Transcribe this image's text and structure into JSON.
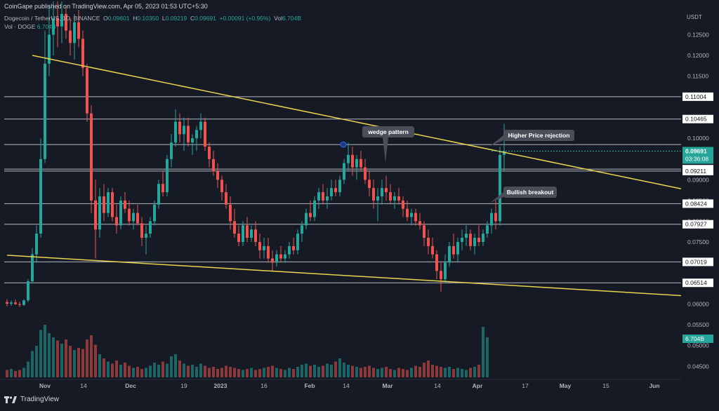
{
  "header": {
    "published": "CoinGape published on TradingView.com, Apr 05, 2023 01:53 UTC+5:30",
    "symbol": "Dogecoin / TetherUS, 1D, BINANCE",
    "o_label": "O",
    "o_val": "0.09601",
    "h_label": "H",
    "h_val": "0.10350",
    "l_label": "L",
    "l_val": "0.09219",
    "c_label": "C",
    "c_val": "0.09691",
    "change": "+0.00091 (+0.95%)",
    "vol_label": "Vol",
    "vol_val": "6.704B",
    "vol2_label": "Vol · DOGE",
    "vol2_val": "6.704B"
  },
  "footer": {
    "brand": "TradingView",
    "icon": "tradingview-logo-icon"
  },
  "colors": {
    "bg": "#161a25",
    "up": "#26a69a",
    "down": "#ef5350",
    "trendline": "#e8d44d",
    "level": "#d1d4dc",
    "text": "#b2b5be",
    "price_tag": "#26a69a"
  },
  "chart_data": {
    "type": "candlestick",
    "title": "Dogecoin / TetherUS, 1D, BINANCE",
    "currency": "USDT",
    "ylim": [
      0.042,
      0.131
    ],
    "y_ticks": [
      0.045,
      0.05,
      0.055,
      0.06,
      0.065,
      0.075,
      0.08,
      0.085,
      0.09,
      0.1,
      0.105,
      0.115,
      0.12,
      0.125
    ],
    "y_tick_labels": [
      "0.04500",
      "0.05000",
      "0.05500",
      "0.06000",
      "0.06500",
      "0.07500",
      "0.08000",
      "0.08500",
      "0.09000",
      "0.10000",
      "0.10500",
      "0.11500",
      "0.12000",
      "0.12500"
    ],
    "x_ticks": [
      "Nov",
      "14",
      "Dec",
      "19",
      "2023",
      "16",
      "Feb",
      "14",
      "Mar",
      "14",
      "Apr",
      "17",
      "May",
      "15",
      "Jun"
    ],
    "horizontal_levels": [
      0.11004,
      0.10465,
      0.0985,
      0.09256,
      0.09211,
      0.08424,
      0.07927,
      0.07019,
      0.06514
    ],
    "level_labels": [
      "0.11004",
      "0.10465",
      "",
      "0.09256",
      "0.09211",
      "0.08424",
      "0.07927",
      "0.07019",
      "0.06514"
    ],
    "current_price": {
      "value": 0.09691,
      "label": "0.09691",
      "countdown": "03:36:08"
    },
    "volume_label": "6.704B",
    "annotations": [
      {
        "text": "wedge pattern"
      },
      {
        "text": "Higher Price rejection"
      },
      {
        "text": "Bullish breakout"
      }
    ],
    "trendlines": [
      {
        "name": "upper",
        "from": [
          "2022-10-30",
          0.12
        ],
        "to": [
          "2023-06-24",
          0.0705
        ]
      },
      {
        "name": "lower",
        "from": [
          "2022-10-24",
          0.0718
        ],
        "to": [
          "2023-06-24",
          0.057
        ]
      }
    ],
    "candles": [
      [
        0.0605,
        0.0612,
        0.0595,
        0.0601
      ],
      [
        0.0601,
        0.0609,
        0.0596,
        0.0604
      ],
      [
        0.0604,
        0.0611,
        0.0598,
        0.06
      ],
      [
        0.06,
        0.0606,
        0.0593,
        0.0598
      ],
      [
        0.0598,
        0.0612,
        0.0596,
        0.0609
      ],
      [
        0.0609,
        0.066,
        0.0605,
        0.0655
      ],
      [
        0.0655,
        0.0735,
        0.065,
        0.072
      ],
      [
        0.072,
        0.079,
        0.07,
        0.077
      ],
      [
        0.077,
        0.1,
        0.076,
        0.095
      ],
      [
        0.095,
        0.126,
        0.094,
        0.118
      ],
      [
        0.118,
        0.132,
        0.115,
        0.125
      ],
      [
        0.125,
        0.133,
        0.12,
        0.129
      ],
      [
        0.129,
        0.133,
        0.122,
        0.127
      ],
      [
        0.127,
        0.133,
        0.123,
        0.13
      ],
      [
        0.13,
        0.132,
        0.124,
        0.126
      ],
      [
        0.126,
        0.129,
        0.12,
        0.123
      ],
      [
        0.123,
        0.13,
        0.119,
        0.128
      ],
      [
        0.128,
        0.131,
        0.122,
        0.124
      ],
      [
        0.124,
        0.126,
        0.115,
        0.117
      ],
      [
        0.117,
        0.118,
        0.104,
        0.106
      ],
      [
        0.106,
        0.108,
        0.082,
        0.085
      ],
      [
        0.085,
        0.09,
        0.071,
        0.078
      ],
      [
        0.078,
        0.088,
        0.076,
        0.086
      ],
      [
        0.086,
        0.089,
        0.08,
        0.082
      ],
      [
        0.082,
        0.088,
        0.081,
        0.087
      ],
      [
        0.087,
        0.088,
        0.08,
        0.081
      ],
      [
        0.081,
        0.084,
        0.077,
        0.079
      ],
      [
        0.079,
        0.086,
        0.078,
        0.085
      ],
      [
        0.085,
        0.087,
        0.082,
        0.083
      ],
      [
        0.083,
        0.085,
        0.079,
        0.08
      ],
      [
        0.08,
        0.083,
        0.078,
        0.082
      ],
      [
        0.082,
        0.084,
        0.079,
        0.0795
      ],
      [
        0.0795,
        0.081,
        0.074,
        0.076
      ],
      [
        0.076,
        0.079,
        0.072,
        0.077
      ],
      [
        0.077,
        0.081,
        0.076,
        0.08
      ],
      [
        0.08,
        0.085,
        0.079,
        0.084
      ],
      [
        0.084,
        0.09,
        0.083,
        0.089
      ],
      [
        0.089,
        0.092,
        0.086,
        0.087
      ],
      [
        0.087,
        0.096,
        0.086,
        0.095
      ],
      [
        0.095,
        0.101,
        0.093,
        0.099
      ],
      [
        0.099,
        0.107,
        0.098,
        0.104
      ],
      [
        0.104,
        0.106,
        0.099,
        0.101
      ],
      [
        0.101,
        0.105,
        0.097,
        0.103
      ],
      [
        0.103,
        0.105,
        0.098,
        0.099
      ],
      [
        0.099,
        0.101,
        0.096,
        0.1
      ],
      [
        0.1,
        0.103,
        0.097,
        0.102
      ],
      [
        0.102,
        0.106,
        0.1,
        0.104
      ],
      [
        0.104,
        0.105,
        0.097,
        0.098
      ],
      [
        0.098,
        0.099,
        0.093,
        0.095
      ],
      [
        0.095,
        0.097,
        0.091,
        0.092
      ],
      [
        0.092,
        0.094,
        0.088,
        0.09
      ],
      [
        0.09,
        0.091,
        0.085,
        0.087
      ],
      [
        0.087,
        0.089,
        0.083,
        0.084
      ],
      [
        0.084,
        0.086,
        0.078,
        0.08
      ],
      [
        0.08,
        0.083,
        0.076,
        0.077
      ],
      [
        0.077,
        0.079,
        0.074,
        0.075
      ],
      [
        0.075,
        0.08,
        0.074,
        0.079
      ],
      [
        0.079,
        0.081,
        0.075,
        0.076
      ],
      [
        0.076,
        0.079,
        0.075,
        0.078
      ],
      [
        0.078,
        0.08,
        0.074,
        0.075
      ],
      [
        0.075,
        0.077,
        0.071,
        0.073
      ],
      [
        0.073,
        0.076,
        0.071,
        0.074
      ],
      [
        0.074,
        0.076,
        0.07,
        0.071
      ],
      [
        0.071,
        0.073,
        0.068,
        0.07
      ],
      [
        0.07,
        0.073,
        0.069,
        0.072
      ],
      [
        0.072,
        0.074,
        0.07,
        0.071
      ],
      [
        0.071,
        0.073,
        0.07,
        0.072
      ],
      [
        0.072,
        0.075,
        0.071,
        0.074
      ],
      [
        0.074,
        0.076,
        0.072,
        0.073
      ],
      [
        0.073,
        0.078,
        0.072,
        0.077
      ],
      [
        0.077,
        0.08,
        0.075,
        0.079
      ],
      [
        0.079,
        0.083,
        0.078,
        0.082
      ],
      [
        0.082,
        0.085,
        0.08,
        0.081
      ],
      [
        0.081,
        0.086,
        0.08,
        0.085
      ],
      [
        0.085,
        0.088,
        0.083,
        0.087
      ],
      [
        0.087,
        0.089,
        0.084,
        0.085
      ],
      [
        0.085,
        0.088,
        0.083,
        0.086
      ],
      [
        0.086,
        0.09,
        0.085,
        0.088
      ],
      [
        0.088,
        0.09,
        0.086,
        0.087
      ],
      [
        0.087,
        0.091,
        0.086,
        0.09
      ],
      [
        0.09,
        0.095,
        0.089,
        0.094
      ],
      [
        0.094,
        0.099,
        0.092,
        0.096
      ],
      [
        0.096,
        0.098,
        0.091,
        0.093
      ],
      [
        0.093,
        0.096,
        0.09,
        0.095
      ],
      [
        0.095,
        0.097,
        0.092,
        0.093
      ],
      [
        0.093,
        0.095,
        0.089,
        0.09
      ],
      [
        0.09,
        0.092,
        0.086,
        0.088
      ],
      [
        0.088,
        0.09,
        0.083,
        0.085
      ],
      [
        0.085,
        0.088,
        0.08,
        0.086
      ],
      [
        0.086,
        0.09,
        0.084,
        0.088
      ],
      [
        0.088,
        0.091,
        0.085,
        0.087
      ],
      [
        0.087,
        0.089,
        0.084,
        0.085
      ],
      [
        0.085,
        0.087,
        0.083,
        0.086
      ],
      [
        0.086,
        0.088,
        0.084,
        0.085
      ],
      [
        0.085,
        0.086,
        0.081,
        0.083
      ],
      [
        0.083,
        0.085,
        0.08,
        0.081
      ],
      [
        0.081,
        0.083,
        0.079,
        0.082
      ],
      [
        0.082,
        0.083,
        0.079,
        0.08
      ],
      [
        0.08,
        0.082,
        0.078,
        0.079
      ],
      [
        0.079,
        0.08,
        0.074,
        0.076
      ],
      [
        0.076,
        0.078,
        0.072,
        0.074
      ],
      [
        0.074,
        0.076,
        0.071,
        0.072
      ],
      [
        0.072,
        0.073,
        0.066,
        0.068
      ],
      [
        0.068,
        0.07,
        0.063,
        0.066
      ],
      [
        0.066,
        0.072,
        0.065,
        0.07
      ],
      [
        0.07,
        0.075,
        0.069,
        0.074
      ],
      [
        0.074,
        0.077,
        0.071,
        0.072
      ],
      [
        0.072,
        0.076,
        0.07,
        0.075
      ],
      [
        0.075,
        0.078,
        0.073,
        0.076
      ],
      [
        0.076,
        0.079,
        0.074,
        0.077
      ],
      [
        0.077,
        0.078,
        0.073,
        0.074
      ],
      [
        0.074,
        0.077,
        0.072,
        0.076
      ],
      [
        0.076,
        0.079,
        0.074,
        0.075
      ],
      [
        0.075,
        0.078,
        0.074,
        0.077
      ],
      [
        0.077,
        0.08,
        0.076,
        0.079
      ],
      [
        0.079,
        0.083,
        0.077,
        0.082
      ],
      [
        0.082,
        0.085,
        0.078,
        0.08
      ],
      [
        0.08,
        0.098,
        0.079,
        0.096
      ],
      [
        0.096,
        0.1035,
        0.0922,
        0.0969
      ]
    ],
    "volumes": [
      0.7,
      0.8,
      0.6,
      0.7,
      0.9,
      1.5,
      2.5,
      3.0,
      4.5,
      5.0,
      4.2,
      3.8,
      3.5,
      3.2,
      3.6,
      3.0,
      2.6,
      2.8,
      2.7,
      3.6,
      4.0,
      3.1,
      2.2,
      1.8,
      1.5,
      1.3,
      1.6,
      1.2,
      1.4,
      1.1,
      0.9,
      1.0,
      0.8,
      0.9,
      1.1,
      1.4,
      1.2,
      1.5,
      1.3,
      2.0,
      2.2,
      1.6,
      1.3,
      1.1,
      1.2,
      1.0,
      1.3,
      1.1,
      0.9,
      1.0,
      0.8,
      0.9,
      1.1,
      1.0,
      0.9,
      0.8,
      0.7,
      0.8,
      0.9,
      0.7,
      0.8,
      0.9,
      1.0,
      1.1,
      0.9,
      0.8,
      0.7,
      0.9,
      0.8,
      1.0,
      1.2,
      1.3,
      1.1,
      1.2,
      1.0,
      1.1,
      1.3,
      1.2,
      1.5,
      1.8,
      1.4,
      1.2,
      1.1,
      1.0,
      0.9,
      1.0,
      1.1,
      0.9,
      0.8,
      0.9,
      1.0,
      0.8,
      0.7,
      0.9,
      0.8,
      0.7,
      0.9,
      1.1,
      1.0,
      1.4,
      1.6,
      1.2,
      1.1,
      1.0,
      0.9,
      1.0,
      0.8,
      0.9,
      0.8,
      0.7,
      0.9,
      1.0,
      1.2,
      4.8,
      3.8
    ]
  }
}
